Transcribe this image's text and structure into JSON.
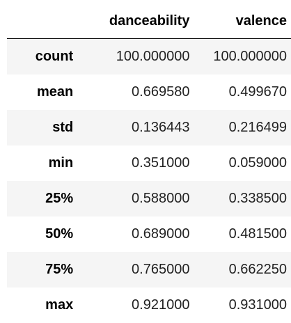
{
  "table": {
    "corner": "",
    "columns": [
      "danceability",
      "valence"
    ],
    "rows": [
      {
        "index": "count",
        "values": [
          "100.000000",
          "100.000000"
        ]
      },
      {
        "index": "mean",
        "values": [
          "0.669580",
          "0.499670"
        ]
      },
      {
        "index": "std",
        "values": [
          "0.136443",
          "0.216499"
        ]
      },
      {
        "index": "min",
        "values": [
          "0.351000",
          "0.059000"
        ]
      },
      {
        "index": "25%",
        "values": [
          "0.588000",
          "0.338500"
        ]
      },
      {
        "index": "50%",
        "values": [
          "0.689000",
          "0.481500"
        ]
      },
      {
        "index": "75%",
        "values": [
          "0.765000",
          "0.662250"
        ]
      },
      {
        "index": "max",
        "values": [
          "0.921000",
          "0.931000"
        ]
      }
    ]
  },
  "colors": {
    "stripe": "#f5f5f5",
    "background": "#ffffff",
    "text": "#000000"
  }
}
